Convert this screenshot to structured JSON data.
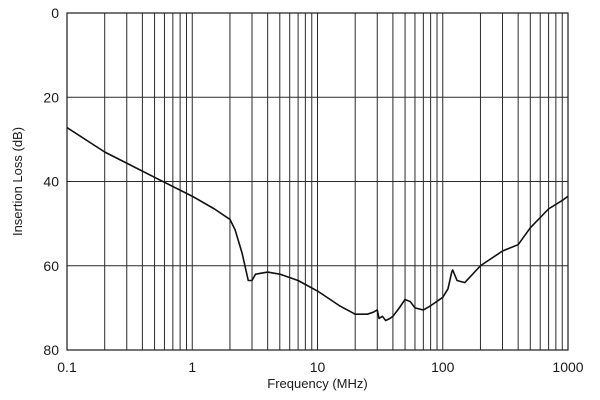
{
  "chart_data": {
    "type": "line",
    "xlabel": "Frequency (MHz)",
    "ylabel": "Insertion Loss (dB)",
    "x_scale": "log",
    "xlim": [
      0.1,
      1000
    ],
    "ylim": [
      0,
      80
    ],
    "y_inverted": true,
    "grid": true,
    "x_ticks": [
      {
        "value": 0.1,
        "label": "0.1"
      },
      {
        "value": 1,
        "label": "1"
      },
      {
        "value": 10,
        "label": "10"
      },
      {
        "value": 100,
        "label": "100"
      },
      {
        "value": 1000,
        "label": "1000"
      }
    ],
    "y_ticks": [
      {
        "value": 0,
        "label": "0"
      },
      {
        "value": 20,
        "label": "20"
      },
      {
        "value": 40,
        "label": "40"
      },
      {
        "value": 60,
        "label": "60"
      },
      {
        "value": 80,
        "label": "80"
      }
    ],
    "series": [
      {
        "color": "#111111",
        "points": [
          [
            0.1,
            27.2
          ],
          [
            0.2,
            33
          ],
          [
            0.5,
            39
          ],
          [
            1,
            43.5
          ],
          [
            1.5,
            46.5
          ],
          [
            2,
            49
          ],
          [
            2.2,
            51.5
          ],
          [
            2.5,
            57
          ],
          [
            2.8,
            63.5
          ],
          [
            3,
            63.5
          ],
          [
            3.2,
            62
          ],
          [
            4,
            61.5
          ],
          [
            5,
            62
          ],
          [
            7,
            63.5
          ],
          [
            10,
            66
          ],
          [
            15,
            69.5
          ],
          [
            20,
            71.5
          ],
          [
            25,
            71.5
          ],
          [
            28,
            71
          ],
          [
            30,
            70.5
          ],
          [
            31,
            72.5
          ],
          [
            33,
            72
          ],
          [
            35,
            73
          ],
          [
            38,
            72.5
          ],
          [
            40,
            72
          ],
          [
            45,
            70
          ],
          [
            50,
            68
          ],
          [
            55,
            68.5
          ],
          [
            60,
            70
          ],
          [
            70,
            70.5
          ],
          [
            80,
            69.5
          ],
          [
            100,
            67.5
          ],
          [
            110,
            65.5
          ],
          [
            118,
            61.5
          ],
          [
            120,
            61
          ],
          [
            130,
            63.5
          ],
          [
            150,
            64
          ],
          [
            200,
            60
          ],
          [
            300,
            56.5
          ],
          [
            400,
            55
          ],
          [
            500,
            51
          ],
          [
            700,
            46.5
          ],
          [
            900,
            44.5
          ],
          [
            1000,
            43.5
          ]
        ]
      }
    ]
  }
}
